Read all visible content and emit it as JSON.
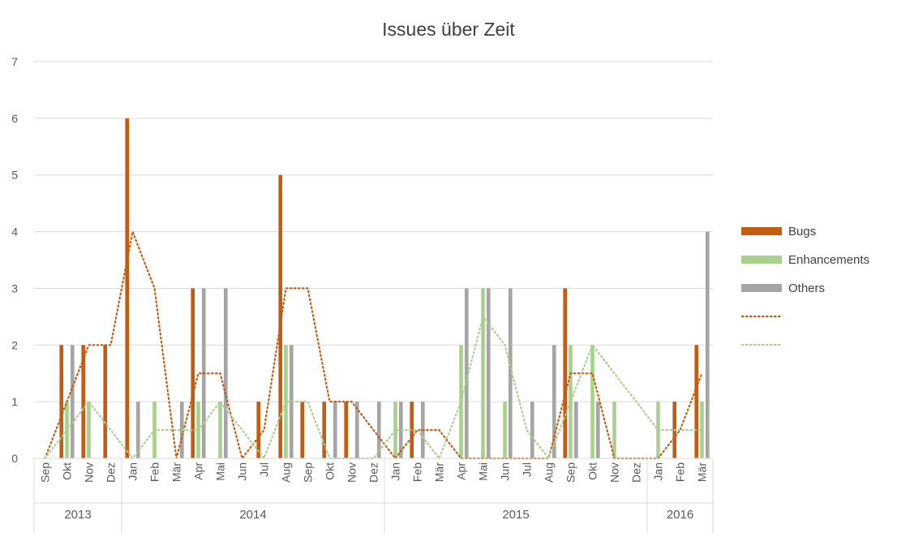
{
  "chart_data": {
    "type": "bar",
    "title": "Issues über Zeit",
    "xlabel": "",
    "ylabel": "",
    "ylim": [
      0,
      7
    ],
    "yticks": [
      0,
      1,
      2,
      3,
      4,
      5,
      6,
      7
    ],
    "grid": true,
    "legend_position": "right",
    "categories": [
      "Sep",
      "Okt",
      "Nov",
      "Dez",
      "Jan",
      "Feb",
      "Mär",
      "Apr",
      "Mai",
      "Jun",
      "Jul",
      "Aug",
      "Sep",
      "Okt",
      "Nov",
      "Dez",
      "Jan",
      "Feb",
      "Mär",
      "Apr",
      "Mai",
      "Jun",
      "Jul",
      "Aug",
      "Sep",
      "Okt",
      "Nov",
      "Dez",
      "Jan",
      "Feb",
      "Mär"
    ],
    "year_groups": [
      {
        "label": "2013",
        "count": 4
      },
      {
        "label": "2014",
        "count": 12
      },
      {
        "label": "2015",
        "count": 12
      },
      {
        "label": "2016",
        "count": 3
      }
    ],
    "series": [
      {
        "name": "Bugs",
        "kind": "bar",
        "color": "#c55a11",
        "values": [
          0,
          2,
          2,
          2,
          6,
          0,
          0,
          3,
          0,
          0,
          1,
          5,
          1,
          1,
          1,
          0,
          0,
          1,
          0,
          0,
          0,
          0,
          0,
          0,
          3,
          0,
          0,
          0,
          0,
          1,
          2
        ]
      },
      {
        "name": "Enhancements",
        "kind": "bar",
        "color": "#a9d18e",
        "values": [
          0,
          1,
          1,
          0,
          0,
          1,
          0,
          1,
          1,
          0,
          0,
          2,
          0,
          0,
          0,
          0,
          1,
          0,
          0,
          2,
          3,
          1,
          0,
          0,
          2,
          2,
          1,
          0,
          1,
          0,
          1
        ]
      },
      {
        "name": "Others",
        "kind": "bar",
        "color": "#a5a5a5",
        "values": [
          0,
          2,
          0,
          0,
          1,
          0,
          1,
          3,
          3,
          0,
          0,
          2,
          0,
          1,
          1,
          1,
          1,
          1,
          0,
          3,
          3,
          3,
          1,
          2,
          1,
          1,
          0,
          0,
          0,
          0,
          4
        ]
      },
      {
        "name": "",
        "kind": "dotted-line",
        "color": "#c55a11",
        "values": [
          0,
          1,
          2,
          2,
          4,
          3,
          0,
          1.5,
          1.5,
          0,
          0.5,
          3,
          3,
          1,
          1,
          0.5,
          0,
          0.5,
          0.5,
          0,
          0,
          0,
          0,
          0,
          1.5,
          1.5,
          0,
          0,
          0,
          0.5,
          1.5
        ]
      },
      {
        "name": "",
        "kind": "dotted-line",
        "color": "#a9d18e",
        "values": [
          0,
          0.5,
          1,
          0.5,
          0,
          0.5,
          0.5,
          0.5,
          1,
          0.5,
          0,
          1,
          1,
          0,
          0,
          0,
          0.5,
          0.5,
          0,
          1,
          2.5,
          2,
          0.5,
          0,
          1,
          2,
          1.5,
          1,
          0.5,
          0.5,
          0.5
        ]
      }
    ]
  }
}
